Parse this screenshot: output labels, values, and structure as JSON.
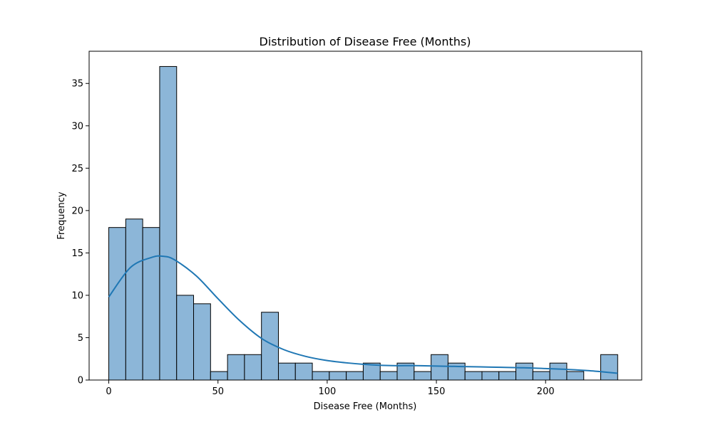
{
  "chart_data": {
    "type": "bar",
    "subtype": "histogram-with-kde",
    "title": "Distribution of Disease Free (Months)",
    "xlabel": "Disease Free (Months)",
    "ylabel": "Frequency",
    "xlim": [
      -9,
      244
    ],
    "ylim": [
      0,
      38.8
    ],
    "xticks": [
      0,
      50,
      100,
      150,
      200
    ],
    "yticks": [
      0,
      5,
      10,
      15,
      20,
      25,
      30,
      35
    ],
    "grid": false,
    "legend": "none",
    "bins": {
      "edges": [
        0,
        7.77,
        15.53,
        23.3,
        31.07,
        38.83,
        46.6,
        54.37,
        62.13,
        69.9,
        77.67,
        85.43,
        93.2,
        100.97,
        108.73,
        116.5,
        124.27,
        132.03,
        139.8,
        147.57,
        155.33,
        163.1,
        170.87,
        178.63,
        186.4,
        194.17,
        201.93,
        209.7,
        217.47,
        225.23,
        233.0
      ],
      "counts": [
        18,
        19,
        18,
        37,
        10,
        9,
        1,
        3,
        3,
        8,
        2,
        2,
        1,
        1,
        1,
        2,
        1,
        2,
        1,
        3,
        2,
        1,
        1,
        1,
        2,
        1,
        2,
        1,
        0,
        3
      ]
    },
    "kde": {
      "x": [
        0,
        10,
        20,
        25,
        30,
        40,
        50,
        60,
        70,
        80,
        90,
        100,
        110,
        120,
        130,
        140,
        150,
        160,
        170,
        180,
        190,
        200,
        210,
        220,
        233
      ],
      "y": [
        9.8,
        13.3,
        14.5,
        14.6,
        14.2,
        12.3,
        9.6,
        7.0,
        4.9,
        3.6,
        2.8,
        2.3,
        2.0,
        1.8,
        1.7,
        1.7,
        1.65,
        1.6,
        1.55,
        1.5,
        1.45,
        1.35,
        1.25,
        1.1,
        0.8
      ]
    },
    "colors": {
      "bar_fill": "#8cb6d8",
      "bar_edge": "#000000",
      "kde_line": "#1f77b4"
    }
  }
}
